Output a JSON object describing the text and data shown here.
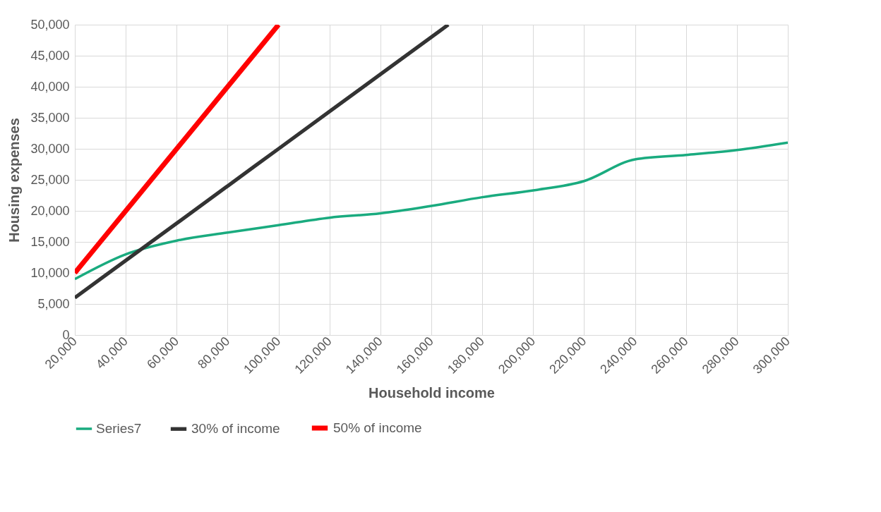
{
  "chart_data": {
    "type": "line",
    "xlabel": "Household income",
    "ylabel": "Housing expenses",
    "xlim": [
      20000,
      300000
    ],
    "xticks": [
      {
        "value": 20000,
        "label": "20,000"
      },
      {
        "value": 40000,
        "label": "40,000"
      },
      {
        "value": 60000,
        "label": "60,000"
      },
      {
        "value": 80000,
        "label": "80,000"
      },
      {
        "value": 100000,
        "label": "100,000"
      },
      {
        "value": 120000,
        "label": "120,000"
      },
      {
        "value": 140000,
        "label": "140,000"
      },
      {
        "value": 160000,
        "label": "160,000"
      },
      {
        "value": 180000,
        "label": "180,000"
      },
      {
        "value": 200000,
        "label": "200,000"
      },
      {
        "value": 220000,
        "label": "220,000"
      },
      {
        "value": 240000,
        "label": "240,000"
      },
      {
        "value": 260000,
        "label": "260,000"
      },
      {
        "value": 280000,
        "label": "280,000"
      },
      {
        "value": 300000,
        "label": "300,000"
      }
    ],
    "ylim": [
      0,
      50000
    ],
    "yticks": [
      0,
      {
        "value": 5000,
        "label": "5,000"
      },
      {
        "value": 10000,
        "label": "10,000"
      },
      {
        "value": 15000,
        "label": "15,000"
      },
      {
        "value": 20000,
        "label": "20,000"
      },
      {
        "value": 25000,
        "label": "25,000"
      },
      {
        "value": 30000,
        "label": "30,000"
      },
      {
        "value": 35000,
        "label": "35,000"
      },
      {
        "value": 40000,
        "label": "40,000"
      },
      {
        "value": 45000,
        "label": "45,000"
      },
      {
        "value": 50000,
        "label": "50,000"
      }
    ],
    "x": [
      20000,
      40000,
      60000,
      80000,
      100000,
      120000,
      140000,
      160000,
      180000,
      200000,
      220000,
      240000,
      260000,
      280000,
      300000
    ],
    "series": [
      {
        "name": "Series7",
        "color": "#1aab7f",
        "values": [
          9000,
          13000,
          15200,
          16500,
          17700,
          18900,
          19600,
          20800,
          22200,
          23300,
          24800,
          28300,
          29000,
          29800,
          31000
        ]
      },
      {
        "name": "30% of income",
        "color": "#333333",
        "x": [
          20000,
          40000,
          60000,
          80000,
          100000,
          120000,
          140000,
          160000,
          166667
        ],
        "values": [
          6000,
          12000,
          18000,
          24000,
          30000,
          36000,
          42000,
          48000,
          50000
        ]
      },
      {
        "name": "50% of income",
        "color": "#ff0000",
        "x": [
          20000,
          40000,
          60000,
          80000,
          100000
        ],
        "values": [
          10000,
          20000,
          30000,
          40000,
          50000
        ]
      }
    ],
    "grid": true,
    "legend": "bottom"
  }
}
